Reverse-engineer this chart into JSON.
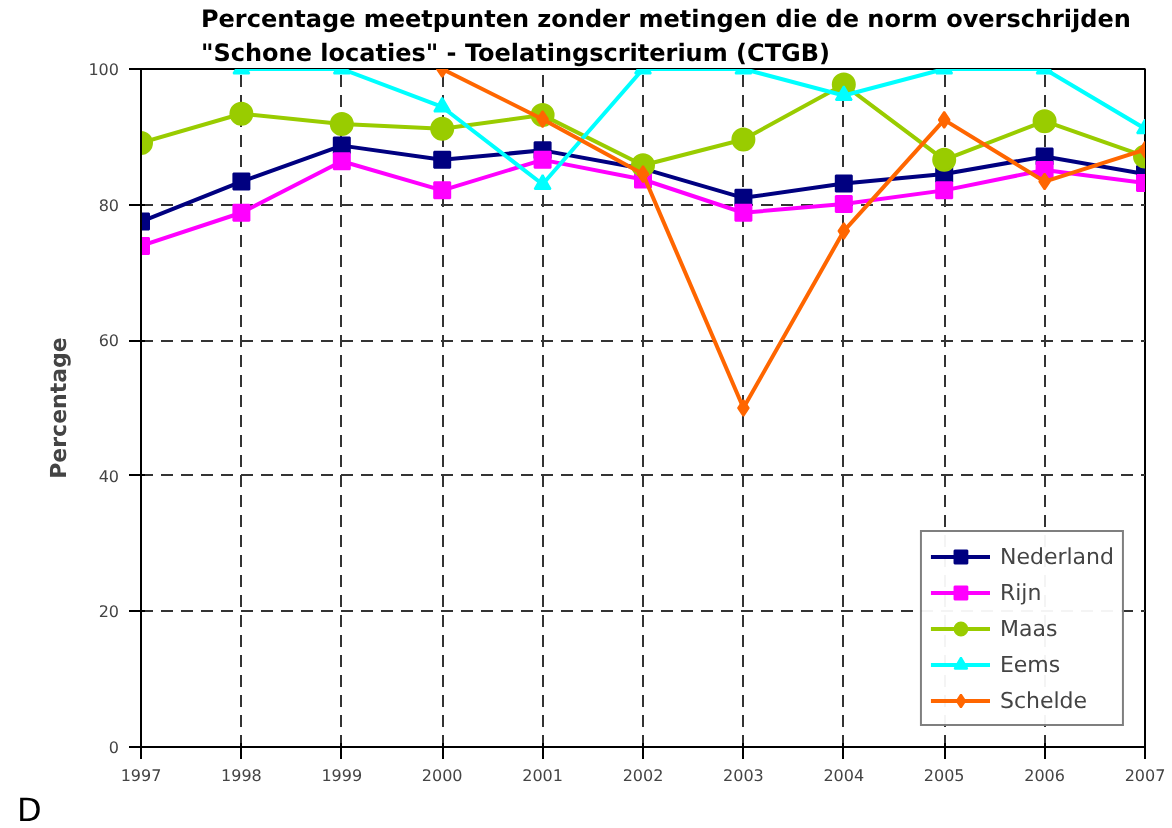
{
  "chart_data": {
    "type": "line",
    "title": "Percentage meetpunten zonder metingen die de norm overschrijden",
    "subtitle": "\"Schone locaties\" - Toelatingscriterium (CTGB)",
    "ylabel": "Percentage",
    "x": [
      1997,
      1998,
      1999,
      2000,
      2001,
      2002,
      2003,
      2004,
      2005,
      2006,
      2007
    ],
    "xlim": [
      1997,
      2007
    ],
    "xticks": [
      1997,
      1998,
      1999,
      2000,
      2001,
      2002,
      2003,
      2004,
      2005,
      2006,
      2007
    ],
    "ylim": [
      0,
      100
    ],
    "yticks": [
      0,
      20,
      40,
      60,
      80,
      100
    ],
    "grid": true,
    "legend": "bottom right",
    "line_style": "solid",
    "annotations": [
      "D"
    ],
    "series": [
      {
        "name": "Nederland",
        "color": "#000080",
        "marker": "square",
        "values": [
          77.5,
          83.4,
          88.7,
          86.6,
          88.0,
          85.3,
          81.0,
          83.1,
          84.5,
          87.1,
          84.5
        ]
      },
      {
        "name": "Rijn",
        "color": "#ff00ff",
        "marker": "square",
        "values": [
          73.9,
          78.8,
          86.4,
          82.1,
          86.6,
          83.7,
          78.8,
          80.1,
          82.1,
          85.1,
          83.2
        ]
      },
      {
        "name": "Maas",
        "color": "#99cc00",
        "marker": "circle",
        "values": [
          89.1,
          93.4,
          91.9,
          91.2,
          93.2,
          85.8,
          89.6,
          97.7,
          86.6,
          92.3,
          87.1
        ]
      },
      {
        "name": "Eems",
        "color": "#00ffff",
        "marker": "triangle",
        "values": [
          null,
          100,
          100,
          94.4,
          83.0,
          100,
          100,
          96.1,
          100,
          100,
          91.2
        ]
      },
      {
        "name": "Schelde",
        "color": "#ff6600",
        "marker": "diamond",
        "values": [
          null,
          null,
          null,
          100,
          92.6,
          84.5,
          50.0,
          76.1,
          92.5,
          83.4,
          88.1
        ]
      }
    ]
  }
}
